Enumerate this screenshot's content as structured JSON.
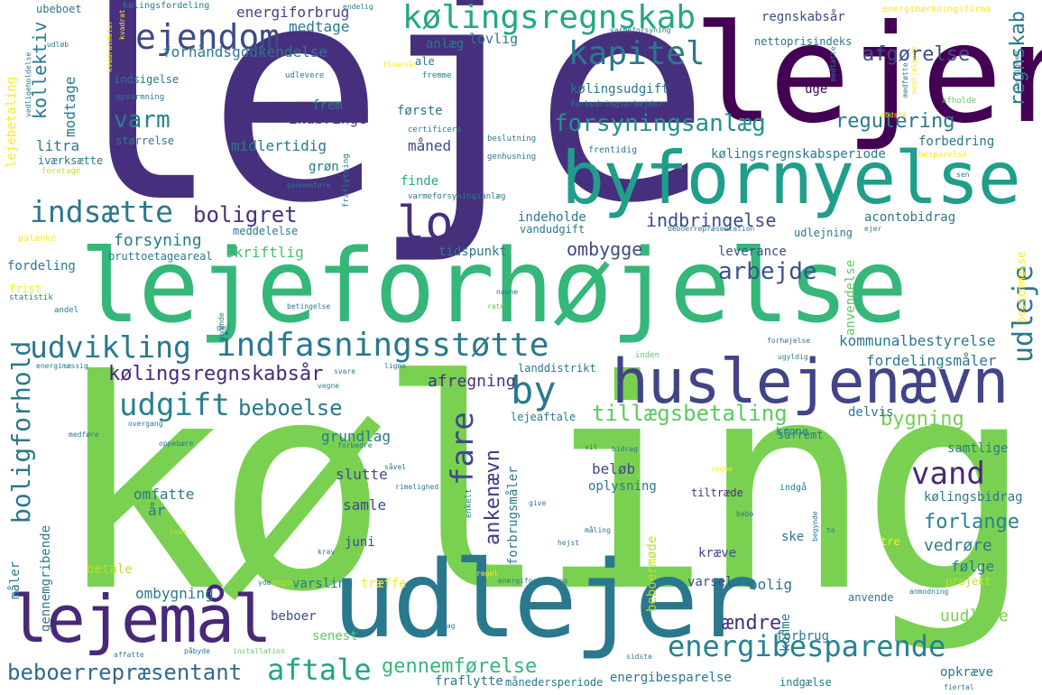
{
  "words": [
    {
      "text": "leje",
      "color": "#46307e"
    },
    {
      "text": "køling",
      "color": "#7ad151"
    },
    {
      "text": "lejeforhøjelse",
      "color": "#35b779"
    },
    {
      "text": "lejer",
      "color": "#440154"
    },
    {
      "text": "byfornyelse",
      "color": "#1f9e89"
    },
    {
      "text": "udlejer",
      "color": "#2a788e"
    },
    {
      "text": "huslejenævn",
      "color": "#414487"
    },
    {
      "text": "lejemål",
      "color": "#482878"
    },
    {
      "text": "indfasningsstøtte",
      "color": "#2a788e"
    },
    {
      "text": "kølingsregnskab",
      "color": "#22a884"
    },
    {
      "text": "energibesparende",
      "color": "#26828e"
    },
    {
      "text": "lov",
      "color": "#46307e"
    },
    {
      "text": "ejendom",
      "color": "#3e4a89"
    },
    {
      "text": "kapitel",
      "color": "#2a788e"
    },
    {
      "text": "udvikling",
      "color": "#2a788e"
    },
    {
      "text": "indsætte",
      "color": "#2a788e"
    },
    {
      "text": "udgift",
      "color": "#26828e"
    },
    {
      "text": "aftale",
      "color": "#20a486"
    },
    {
      "text": "vand",
      "color": "#482878"
    },
    {
      "text": "beboerrepræsentant",
      "color": "#31688e"
    },
    {
      "text": "gennemførelse",
      "color": "#35b779"
    },
    {
      "text": "forsyningsanlæg",
      "color": "#21918c"
    },
    {
      "text": "boligforhold",
      "color": "#2a788e"
    },
    {
      "text": "fare",
      "color": "#3e4a89"
    },
    {
      "text": "udleje",
      "color": "#2a788e"
    },
    {
      "text": "by",
      "color": "#2a788e"
    },
    {
      "text": "regnskab",
      "color": "#2a788e"
    },
    {
      "text": "ankenævn",
      "color": "#443983"
    },
    {
      "text": "kølingsregnskabsår",
      "color": "#482878"
    },
    {
      "text": "tillægsbetaling",
      "color": "#5ec962"
    },
    {
      "text": "beboelse",
      "color": "#2a788e"
    },
    {
      "text": "arbejde",
      "color": "#3b528b"
    },
    {
      "text": "regulering",
      "color": "#2a788e"
    },
    {
      "text": "afgørelse",
      "color": "#3e4a89"
    },
    {
      "text": "boligret",
      "color": "#46307e"
    },
    {
      "text": "varm",
      "color": "#26828e"
    },
    {
      "text": "forhåndsgodkendelse",
      "color": "#2a788e"
    },
    {
      "text": "energiforbrug",
      "color": "#414487"
    },
    {
      "text": "bygning",
      "color": "#75d054"
    },
    {
      "text": "ombygge",
      "color": "#3e4a89"
    },
    {
      "text": "indbringelse",
      "color": "#3e4a89"
    },
    {
      "text": "kølingsregnskabsperiode",
      "color": "#2a788e"
    },
    {
      "text": "kommunalbestyrelse",
      "color": "#2a788e"
    },
    {
      "text": "fordelingsmåler",
      "color": "#2a788e"
    },
    {
      "text": "forlange",
      "color": "#26828e"
    },
    {
      "text": "uudleje",
      "color": "#7ad151"
    },
    {
      "text": "ændre",
      "color": "#46307e"
    },
    {
      "text": "afregning",
      "color": "#46307e"
    },
    {
      "text": "grundlag",
      "color": "#2a788e"
    },
    {
      "text": "forsyning",
      "color": "#2a788e"
    },
    {
      "text": "skriftlig",
      "color": "#44bf70"
    },
    {
      "text": "kollektiv",
      "color": "#2a788e"
    },
    {
      "text": "modtage",
      "color": "#2a788e"
    },
    {
      "text": "medtage",
      "color": "#2a788e"
    },
    {
      "text": "lovlig",
      "color": "#2a788e"
    },
    {
      "text": "anlæg",
      "color": "#2a788e"
    },
    {
      "text": "regnskabsår",
      "color": "#3e4a89"
    },
    {
      "text": "indbringe",
      "color": "#46307e"
    },
    {
      "text": "frem",
      "color": "#2a788e"
    },
    {
      "text": "midlertidig",
      "color": "#2a788e"
    },
    {
      "text": "første",
      "color": "#2a788e"
    },
    {
      "text": "måned",
      "color": "#3e4a89"
    },
    {
      "text": "uge",
      "color": "#440154"
    },
    {
      "text": "forbedring",
      "color": "#2a788e"
    },
    {
      "text": "kølingsudgift",
      "color": "#2a788e"
    },
    {
      "text": "indeholde",
      "color": "#2a788e"
    },
    {
      "text": "tidspunkt",
      "color": "#2a788e"
    },
    {
      "text": "leverance",
      "color": "#3e4a89"
    },
    {
      "text": "acontobidrag",
      "color": "#2a788e"
    },
    {
      "text": "vandudgift",
      "color": "#2a788e"
    },
    {
      "text": "udlejning",
      "color": "#2a788e"
    },
    {
      "text": "finde",
      "color": "#22a884"
    },
    {
      "text": "grøn",
      "color": "#2a788e"
    },
    {
      "text": "størrelse",
      "color": "#2a788e"
    },
    {
      "text": "litra",
      "color": "#2a788e"
    },
    {
      "text": "fordeling",
      "color": "#2a788e"
    },
    {
      "text": "frist",
      "color": "#fde725"
    },
    {
      "text": "delvis",
      "color": "#2a788e"
    },
    {
      "text": "landdistrikt",
      "color": "#2a788e"
    },
    {
      "text": "krone",
      "color": "#2a788e"
    },
    {
      "text": "samtlige",
      "color": "#2a788e"
    },
    {
      "text": "kølingsbidrag",
      "color": "#2a788e"
    },
    {
      "text": "vedrøre",
      "color": "#2a788e"
    },
    {
      "text": "følge",
      "color": "#2a788e"
    },
    {
      "text": "varsel",
      "color": "#3e4a89"
    },
    {
      "text": "kræve",
      "color": "#3e4a89"
    },
    {
      "text": "bolig",
      "color": "#2a788e"
    },
    {
      "text": "beløb",
      "color": "#3e4a89"
    },
    {
      "text": "oplysning",
      "color": "#2a788e"
    },
    {
      "text": "tiltræde",
      "color": "#46307e"
    },
    {
      "text": "slutte",
      "color": "#3e4a89"
    },
    {
      "text": "samle",
      "color": "#3e4a89"
    },
    {
      "text": "omfatte",
      "color": "#2a788e"
    },
    {
      "text": "år",
      "color": "#2a788e"
    },
    {
      "text": "juni",
      "color": "#3e4a89"
    },
    {
      "text": "varsling",
      "color": "#2a788e"
    },
    {
      "text": "træffe",
      "color": "#fde725"
    },
    {
      "text": "ombygning",
      "color": "#2a788e"
    },
    {
      "text": "beboer",
      "color": "#3e4a89"
    },
    {
      "text": "senest",
      "color": "#5ec962"
    },
    {
      "text": "konme",
      "color": "#2a788e"
    },
    {
      "text": "forbrug",
      "color": "#2a788e"
    },
    {
      "text": "energibesparelse",
      "color": "#2a788e"
    },
    {
      "text": "fraflytte",
      "color": "#2a788e"
    },
    {
      "text": "månedersperiode",
      "color": "#2a788e"
    },
    {
      "text": "indgælse",
      "color": "#2a788e"
    },
    {
      "text": "opkræve",
      "color": "#2a788e"
    },
    {
      "text": "anvende",
      "color": "#2a788e"
    },
    {
      "text": "projekt",
      "color": "#bddf26"
    },
    {
      "text": "betale",
      "color": "#bddf26"
    },
    {
      "text": "måler",
      "color": "#2a788e"
    },
    {
      "text": "gennemgribende",
      "color": "#2a788e"
    },
    {
      "text": "lejeaftale",
      "color": "#2a788e"
    },
    {
      "text": "beboermøde",
      "color": "#bddf26"
    },
    {
      "text": "forbrugsmåler",
      "color": "#2a788e"
    },
    {
      "text": "anvendelse",
      "color": "#5ec962"
    },
    {
      "text": "bestemmelse",
      "color": "#fde725"
    },
    {
      "text": "ske",
      "color": "#2a788e"
    },
    {
      "text": "tre",
      "color": "#fde725"
    },
    {
      "text": "lejebetaling",
      "color": "#fde725"
    },
    {
      "text": "ubeboet",
      "color": "#2a788e"
    },
    {
      "text": "kølingsfordeling",
      "color": "#2a788e"
    },
    {
      "text": "endelig",
      "color": "#2a788e"
    },
    {
      "text": "energimærkningsfirma",
      "color": "#fde725"
    },
    {
      "text": "nettoprisindeks",
      "color": "#2a788e"
    },
    {
      "text": "certificere",
      "color": "#2a788e"
    },
    {
      "text": "beslutning",
      "color": "#2a788e"
    },
    {
      "text": "genhusning",
      "color": "#2a788e"
    },
    {
      "text": "frentidig",
      "color": "#2a788e"
    },
    {
      "text": "varmeforsyningsanlæg",
      "color": "#2a788e"
    },
    {
      "text": "beboerrepræsentation",
      "color": "#2a788e"
    },
    {
      "text": "meddelelse",
      "color": "#2a788e"
    },
    {
      "text": "bruttoetageareal",
      "color": "#2a788e"
    },
    {
      "text": "pätænke",
      "color": "#fde725"
    },
    {
      "text": "statistik",
      "color": "#2a788e"
    },
    {
      "text": "andel",
      "color": "#2a788e"
    },
    {
      "text": "energimæssig",
      "color": "#2a788e"
    },
    {
      "text": "indsigelse",
      "color": "#2a788e"
    },
    {
      "text": "opvarmning",
      "color": "#2a788e"
    },
    {
      "text": "iværksætte",
      "color": "#2a788e"
    },
    {
      "text": "foretage",
      "color": "#bddf26"
    },
    {
      "text": "udlevere",
      "color": "#2a788e"
    },
    {
      "text": "fremme",
      "color": "#2a788e"
    },
    {
      "text": "finansår",
      "color": "#fde725"
    },
    {
      "text": "ale",
      "color": "#2a788e"
    },
    {
      "text": "forbedringsarbejder",
      "color": "#2a788e"
    },
    {
      "text": "afholde",
      "color": "#5ec962"
    },
    {
      "text": "besparelse",
      "color": "#fde725"
    },
    {
      "text": "sen",
      "color": "#2a788e"
    },
    {
      "text": "ejer",
      "color": "#2a788e"
    },
    {
      "text": "navne",
      "color": "#2a788e"
    },
    {
      "text": "rate",
      "color": "#5ec962"
    },
    {
      "text": "betingelse",
      "color": "#2a788e"
    },
    {
      "text": "inden",
      "color": "#5ec962"
    },
    {
      "text": "forhøjelse",
      "color": "#2a788e"
    },
    {
      "text": "ugyldig",
      "color": "#2a788e"
    },
    {
      "text": "vegne",
      "color": "#2a788e"
    },
    {
      "text": "svare",
      "color": "#2a788e"
    },
    {
      "text": "ligne",
      "color": "#2a788e"
    },
    {
      "text": "overgang",
      "color": "#2a788e"
    },
    {
      "text": "medføre",
      "color": "#2a788e"
    },
    {
      "text": "forbedre",
      "color": "#2a788e"
    },
    {
      "text": "oppebære",
      "color": "#2a788e"
    },
    {
      "text": "såvel",
      "color": "#2a788e"
    },
    {
      "text": "rimelighed",
      "color": "#2a788e"
    },
    {
      "text": "vil",
      "color": "#2a788e"
    },
    {
      "text": "bidrag",
      "color": "#2a788e"
    },
    {
      "text": "såfremt",
      "color": "#2a788e"
    },
    {
      "text": "regne",
      "color": "#fde725"
    },
    {
      "text": "indgå",
      "color": "#2a788e"
    },
    {
      "text": "give",
      "color": "#2a788e"
    },
    {
      "text": "måling",
      "color": "#2a788e"
    },
    {
      "text": "hejst",
      "color": "#2a788e"
    },
    {
      "text": "bebo",
      "color": "#2a788e"
    },
    {
      "text": "svar",
      "color": "#bddf26"
    },
    {
      "text": "krav",
      "color": "#2a788e"
    },
    {
      "text": "yde",
      "color": "#2a788e"
    },
    {
      "text": "megen",
      "color": "#bddf26"
    },
    {
      "text": "energiforbedring",
      "color": "#2a788e"
    },
    {
      "text": "sag",
      "color": "#2a788e"
    },
    {
      "text": "installation",
      "color": "#5ec962"
    },
    {
      "text": "sidste",
      "color": "#2a788e"
    },
    {
      "text": "fiertal",
      "color": "#2a788e"
    },
    {
      "text": "affatte",
      "color": "#2a788e"
    },
    {
      "text": "påbyde",
      "color": "#2a788e"
    },
    {
      "text": "modstå",
      "color": "#fde725"
    },
    {
      "text": "udløb",
      "color": "#2a788e"
    },
    {
      "text": "varmeforsyning",
      "color": "#2a788e"
    },
    {
      "text": "enkelt",
      "color": "#2a788e"
    },
    {
      "text": "anmodning",
      "color": "#2a788e"
    },
    {
      "text": "begynde",
      "color": "#2a788e"
    },
    {
      "text": "to",
      "color": "#2a788e"
    },
    {
      "text": "gennemføre",
      "color": "#2a788e"
    },
    {
      "text": "fraflytning",
      "color": "#2a788e"
    },
    {
      "text": "del",
      "color": "#2a788e"
    },
    {
      "text": "regel",
      "color": "#fde725"
    },
    {
      "text": "vedligeholdelse",
      "color": "#2a788e"
    },
    {
      "text": "kvadratmeter",
      "color": "#fde725"
    },
    {
      "text": "medhjælpere",
      "color": "#fde725"
    },
    {
      "text": "lejlighed",
      "color": "#2a788e"
    },
    {
      "text": "medføtte",
      "color": "#2a788e"
    },
    {
      "text": "medtatte",
      "color": "#2a788e"
    },
    {
      "text": "kvadrat",
      "color": "#fde725"
    }
  ]
}
